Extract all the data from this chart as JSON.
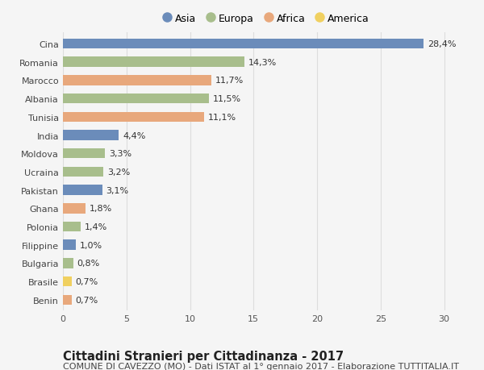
{
  "countries": [
    "Cina",
    "Romania",
    "Marocco",
    "Albania",
    "Tunisia",
    "India",
    "Moldova",
    "Ucraina",
    "Pakistan",
    "Ghana",
    "Polonia",
    "Filippine",
    "Bulgaria",
    "Brasile",
    "Benin"
  ],
  "values": [
    28.4,
    14.3,
    11.7,
    11.5,
    11.1,
    4.4,
    3.3,
    3.2,
    3.1,
    1.8,
    1.4,
    1.0,
    0.8,
    0.7,
    0.7
  ],
  "labels": [
    "28,4%",
    "14,3%",
    "11,7%",
    "11,5%",
    "11,1%",
    "4,4%",
    "3,3%",
    "3,2%",
    "3,1%",
    "1,8%",
    "1,4%",
    "1,0%",
    "0,8%",
    "0,7%",
    "0,7%"
  ],
  "continents": [
    "Asia",
    "Europa",
    "Africa",
    "Europa",
    "Africa",
    "Asia",
    "Europa",
    "Europa",
    "Asia",
    "Africa",
    "Europa",
    "Asia",
    "Europa",
    "America",
    "Africa"
  ],
  "continent_colors": {
    "Asia": "#6b8cba",
    "Europa": "#a8be8c",
    "Africa": "#e8a87c",
    "America": "#f0d060"
  },
  "legend_order": [
    "Asia",
    "Europa",
    "Africa",
    "America"
  ],
  "title": "Cittadini Stranieri per Cittadinanza - 2017",
  "subtitle": "COMUNE DI CAVEZZO (MO) - Dati ISTAT al 1° gennaio 2017 - Elaborazione TUTTITALIA.IT",
  "xlim": [
    0,
    32
  ],
  "xticks": [
    0,
    5,
    10,
    15,
    20,
    25,
    30
  ],
  "background_color": "#f5f5f5",
  "grid_color": "#dddddd",
  "bar_height": 0.55,
  "title_fontsize": 10.5,
  "subtitle_fontsize": 8.0,
  "label_fontsize": 8.0,
  "tick_fontsize": 8.0,
  "legend_fontsize": 9.0
}
